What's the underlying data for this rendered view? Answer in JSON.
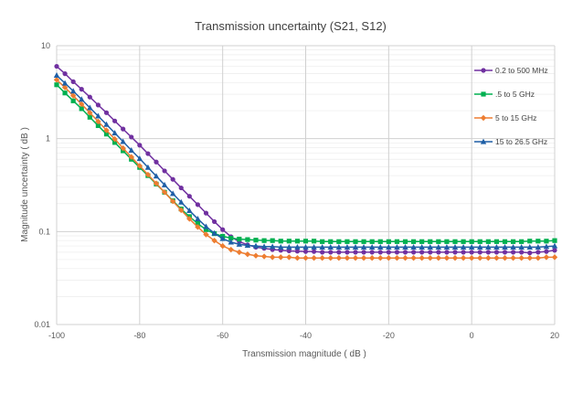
{
  "chart_data": {
    "type": "line",
    "title": "Transmission uncertainty (S21, S12)",
    "xlabel": "Transmission magnitude ( dB )",
    "ylabel": "Magnitude uncertainty ( dB )",
    "x_scale": "linear",
    "y_scale": "log",
    "xlim": [
      -100,
      20
    ],
    "ylim": [
      0.01,
      10
    ],
    "x_ticks": [
      "-100",
      "-80",
      "-60",
      "-40",
      "-20",
      "0",
      "20"
    ],
    "y_ticks": [
      "10",
      "1",
      "0.1",
      "0.01"
    ],
    "grid": true,
    "legend_position": "right",
    "series": [
      {
        "name": "0.2 to 500 MHz",
        "color": "#7030a0",
        "marker": "circle",
        "x_start": -100,
        "x_step": 2,
        "values": [
          6.0,
          5.0,
          4.1,
          3.4,
          2.8,
          2.3,
          1.9,
          1.55,
          1.27,
          1.04,
          0.85,
          0.69,
          0.56,
          0.45,
          0.365,
          0.295,
          0.24,
          0.195,
          0.158,
          0.128,
          0.105,
          0.088,
          0.078,
          0.072,
          0.068,
          0.066,
          0.064,
          0.063,
          0.062,
          0.0615,
          0.061,
          0.061,
          0.06,
          0.06,
          0.06,
          0.06,
          0.06,
          0.06,
          0.06,
          0.06,
          0.06,
          0.06,
          0.06,
          0.06,
          0.06,
          0.06,
          0.06,
          0.06,
          0.06,
          0.06,
          0.06,
          0.06,
          0.06,
          0.06,
          0.06,
          0.06,
          0.06,
          0.059,
          0.06,
          0.061,
          0.063
        ]
      },
      {
        "name": ".5 to 5 GHz",
        "color": "#00b050",
        "marker": "square",
        "x_start": -100,
        "x_step": 2,
        "values": [
          3.8,
          3.1,
          2.55,
          2.1,
          1.7,
          1.38,
          1.12,
          0.91,
          0.74,
          0.6,
          0.49,
          0.4,
          0.325,
          0.265,
          0.215,
          0.175,
          0.145,
          0.122,
          0.105,
          0.095,
          0.089,
          0.085,
          0.083,
          0.082,
          0.081,
          0.08,
          0.08,
          0.079,
          0.079,
          0.079,
          0.079,
          0.079,
          0.078,
          0.078,
          0.078,
          0.078,
          0.078,
          0.078,
          0.078,
          0.078,
          0.078,
          0.078,
          0.078,
          0.078,
          0.078,
          0.078,
          0.078,
          0.078,
          0.078,
          0.078,
          0.078,
          0.078,
          0.078,
          0.078,
          0.078,
          0.078,
          0.078,
          0.079,
          0.079,
          0.079,
          0.08
        ]
      },
      {
        "name": "5 to 15 GHz",
        "color": "#ed7d31",
        "marker": "diamond",
        "x_start": -100,
        "x_step": 2,
        "values": [
          4.3,
          3.55,
          2.9,
          2.35,
          1.9,
          1.53,
          1.23,
          0.99,
          0.79,
          0.635,
          0.51,
          0.41,
          0.33,
          0.265,
          0.212,
          0.17,
          0.137,
          0.112,
          0.093,
          0.08,
          0.07,
          0.064,
          0.06,
          0.057,
          0.055,
          0.054,
          0.053,
          0.053,
          0.053,
          0.052,
          0.052,
          0.052,
          0.052,
          0.052,
          0.052,
          0.052,
          0.052,
          0.052,
          0.052,
          0.052,
          0.052,
          0.052,
          0.052,
          0.052,
          0.052,
          0.052,
          0.052,
          0.052,
          0.052,
          0.052,
          0.052,
          0.052,
          0.052,
          0.052,
          0.052,
          0.052,
          0.052,
          0.052,
          0.052,
          0.053,
          0.053
        ]
      },
      {
        "name": "15 to 26.5 GHz",
        "color": "#1f5fa6",
        "marker": "triangle",
        "x_start": -100,
        "x_step": 2,
        "values": [
          4.8,
          3.95,
          3.25,
          2.65,
          2.15,
          1.75,
          1.42,
          1.15,
          0.93,
          0.75,
          0.61,
          0.49,
          0.395,
          0.318,
          0.256,
          0.207,
          0.168,
          0.137,
          0.113,
          0.096,
          0.084,
          0.077,
          0.073,
          0.071,
          0.07,
          0.069,
          0.069,
          0.068,
          0.068,
          0.068,
          0.068,
          0.068,
          0.068,
          0.068,
          0.068,
          0.068,
          0.068,
          0.068,
          0.068,
          0.068,
          0.068,
          0.068,
          0.068,
          0.068,
          0.068,
          0.068,
          0.068,
          0.068,
          0.068,
          0.068,
          0.068,
          0.068,
          0.068,
          0.068,
          0.068,
          0.068,
          0.068,
          0.068,
          0.068,
          0.069,
          0.07
        ]
      }
    ]
  }
}
